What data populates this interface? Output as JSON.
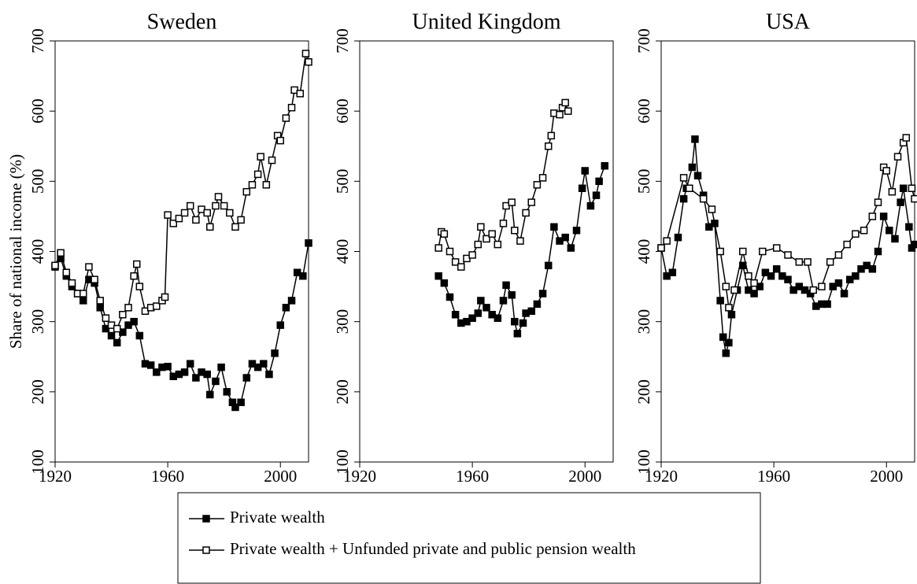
{
  "chart_data": [
    {
      "type": "line",
      "title": "Sweden",
      "ylabel": "Share of national income (%)",
      "xlim": [
        1920,
        2010
      ],
      "xticks": [
        1920,
        1960,
        2000
      ],
      "ylim": [
        100,
        700
      ],
      "yticks": [
        100,
        200,
        300,
        400,
        500,
        600,
        700
      ],
      "series": [
        {
          "name": "Private wealth",
          "color": "#000000",
          "marker_fill": "#000000",
          "x": [
            1920,
            1922,
            1924,
            1926,
            1928,
            1930,
            1932,
            1934,
            1936,
            1938,
            1940,
            1942,
            1944,
            1946,
            1948,
            1950,
            1952,
            1954,
            1956,
            1958,
            1960,
            1962,
            1964,
            1966,
            1968,
            1970,
            1972,
            1974,
            1975,
            1977,
            1979,
            1981,
            1983,
            1984,
            1986,
            1988,
            1990,
            1992,
            1994,
            1996,
            1998,
            2000,
            2002,
            2004,
            2006,
            2008,
            2010
          ],
          "values": [
            378,
            390,
            365,
            350,
            340,
            330,
            360,
            355,
            320,
            290,
            280,
            270,
            285,
            295,
            300,
            280,
            240,
            238,
            228,
            235,
            236,
            222,
            225,
            228,
            240,
            220,
            228,
            225,
            196,
            215,
            235,
            200,
            185,
            178,
            185,
            220,
            240,
            235,
            240,
            225,
            255,
            295,
            320,
            330,
            370,
            365,
            412
          ]
        },
        {
          "name": "Private wealth + Unfunded private and public pension wealth",
          "color": "#000000",
          "marker_fill": "#ffffff",
          "x": [
            1920,
            1922,
            1924,
            1926,
            1928,
            1930,
            1932,
            1934,
            1936,
            1938,
            1940,
            1942,
            1944,
            1946,
            1948,
            1949,
            1950,
            1952,
            1954,
            1956,
            1958,
            1959,
            1960,
            1962,
            1964,
            1966,
            1968,
            1970,
            1972,
            1974,
            1975,
            1977,
            1978,
            1980,
            1982,
            1984,
            1986,
            1988,
            1990,
            1992,
            1993,
            1995,
            1997,
            1999,
            2000,
            2002,
            2004,
            2005,
            2007,
            2009,
            2010
          ],
          "values": [
            380,
            398,
            370,
            355,
            340,
            340,
            378,
            360,
            330,
            305,
            295,
            290,
            310,
            320,
            365,
            382,
            350,
            315,
            320,
            322,
            330,
            335,
            452,
            440,
            447,
            455,
            465,
            445,
            460,
            455,
            435,
            465,
            478,
            465,
            455,
            435,
            445,
            485,
            495,
            510,
            535,
            495,
            530,
            565,
            558,
            590,
            605,
            630,
            625,
            682,
            670
          ]
        }
      ]
    },
    {
      "type": "line",
      "title": "United Kingdom",
      "xlim": [
        1920,
        2010
      ],
      "xticks": [
        1920,
        1960,
        2000
      ],
      "ylim": [
        100,
        700
      ],
      "yticks": [
        100,
        200,
        300,
        400,
        500,
        600,
        700
      ],
      "series": [
        {
          "color": "#000000",
          "marker_fill": "#000000",
          "x": [
            1948,
            1950,
            1952,
            1954,
            1956,
            1958,
            1960,
            1962,
            1963,
            1965,
            1967,
            1969,
            1971,
            1972,
            1974,
            1975,
            1976,
            1978,
            1979,
            1981,
            1983,
            1985,
            1987,
            1989,
            1991,
            1993,
            1995,
            1997,
            1999,
            2000,
            2002,
            2004,
            2005,
            2007
          ],
          "values": [
            365,
            355,
            335,
            310,
            298,
            300,
            305,
            312,
            330,
            320,
            310,
            305,
            330,
            352,
            338,
            300,
            283,
            298,
            312,
            315,
            325,
            340,
            380,
            435,
            415,
            420,
            405,
            430,
            490,
            515,
            465,
            480,
            500,
            522
          ]
        },
        {
          "color": "#000000",
          "marker_fill": "#ffffff",
          "x": [
            1948,
            1949,
            1950,
            1952,
            1954,
            1956,
            1958,
            1960,
            1962,
            1963,
            1965,
            1967,
            1969,
            1971,
            1972,
            1974,
            1975,
            1977,
            1979,
            1981,
            1983,
            1985,
            1987,
            1988,
            1989,
            1991,
            1992,
            1993,
            1994
          ],
          "values": [
            405,
            428,
            425,
            400,
            385,
            378,
            390,
            395,
            410,
            435,
            418,
            425,
            410,
            440,
            465,
            470,
            430,
            415,
            455,
            470,
            495,
            505,
            550,
            565,
            597,
            595,
            605,
            612,
            600
          ]
        }
      ]
    },
    {
      "type": "line",
      "title": "USA",
      "xlim": [
        1920,
        2010
      ],
      "xticks": [
        1920,
        1960,
        2000
      ],
      "ylim": [
        100,
        700
      ],
      "yticks": [
        100,
        200,
        300,
        400,
        500,
        600,
        700
      ],
      "series": [
        {
          "color": "#000000",
          "marker_fill": "#000000",
          "x": [
            1920,
            1922,
            1924,
            1926,
            1928,
            1929,
            1931,
            1932,
            1933,
            1935,
            1937,
            1939,
            1941,
            1942,
            1943,
            1944,
            1945,
            1947,
            1949,
            1951,
            1953,
            1955,
            1957,
            1959,
            1961,
            1963,
            1965,
            1967,
            1969,
            1971,
            1973,
            1975,
            1977,
            1979,
            1981,
            1983,
            1985,
            1987,
            1989,
            1991,
            1993,
            1995,
            1997,
            1999,
            2001,
            2003,
            2005,
            2006,
            2008,
            2009,
            2010
          ],
          "values": [
            405,
            365,
            370,
            420,
            475,
            490,
            520,
            560,
            508,
            480,
            435,
            440,
            330,
            278,
            255,
            270,
            310,
            345,
            380,
            345,
            340,
            350,
            370,
            365,
            375,
            365,
            360,
            345,
            350,
            345,
            340,
            322,
            325,
            325,
            350,
            355,
            340,
            360,
            365,
            375,
            380,
            375,
            400,
            450,
            430,
            418,
            470,
            490,
            435,
            405,
            410
          ]
        },
        {
          "color": "#000000",
          "marker_fill": "#ffffff",
          "x": [
            1920,
            1922,
            1928,
            1930,
            1935,
            1938,
            1941,
            1943,
            1944,
            1946,
            1949,
            1951,
            1953,
            1956,
            1961,
            1965,
            1969,
            1972,
            1974,
            1977,
            1980,
            1983,
            1986,
            1989,
            1992,
            1995,
            1997,
            1999,
            2000,
            2002,
            2004,
            2006,
            2007,
            2009,
            2010
          ],
          "values": [
            405,
            415,
            505,
            490,
            475,
            460,
            400,
            350,
            320,
            345,
            400,
            365,
            355,
            400,
            405,
            395,
            385,
            385,
            345,
            350,
            385,
            395,
            410,
            425,
            430,
            450,
            470,
            520,
            515,
            485,
            535,
            555,
            562,
            490,
            475
          ]
        }
      ]
    }
  ]
}
